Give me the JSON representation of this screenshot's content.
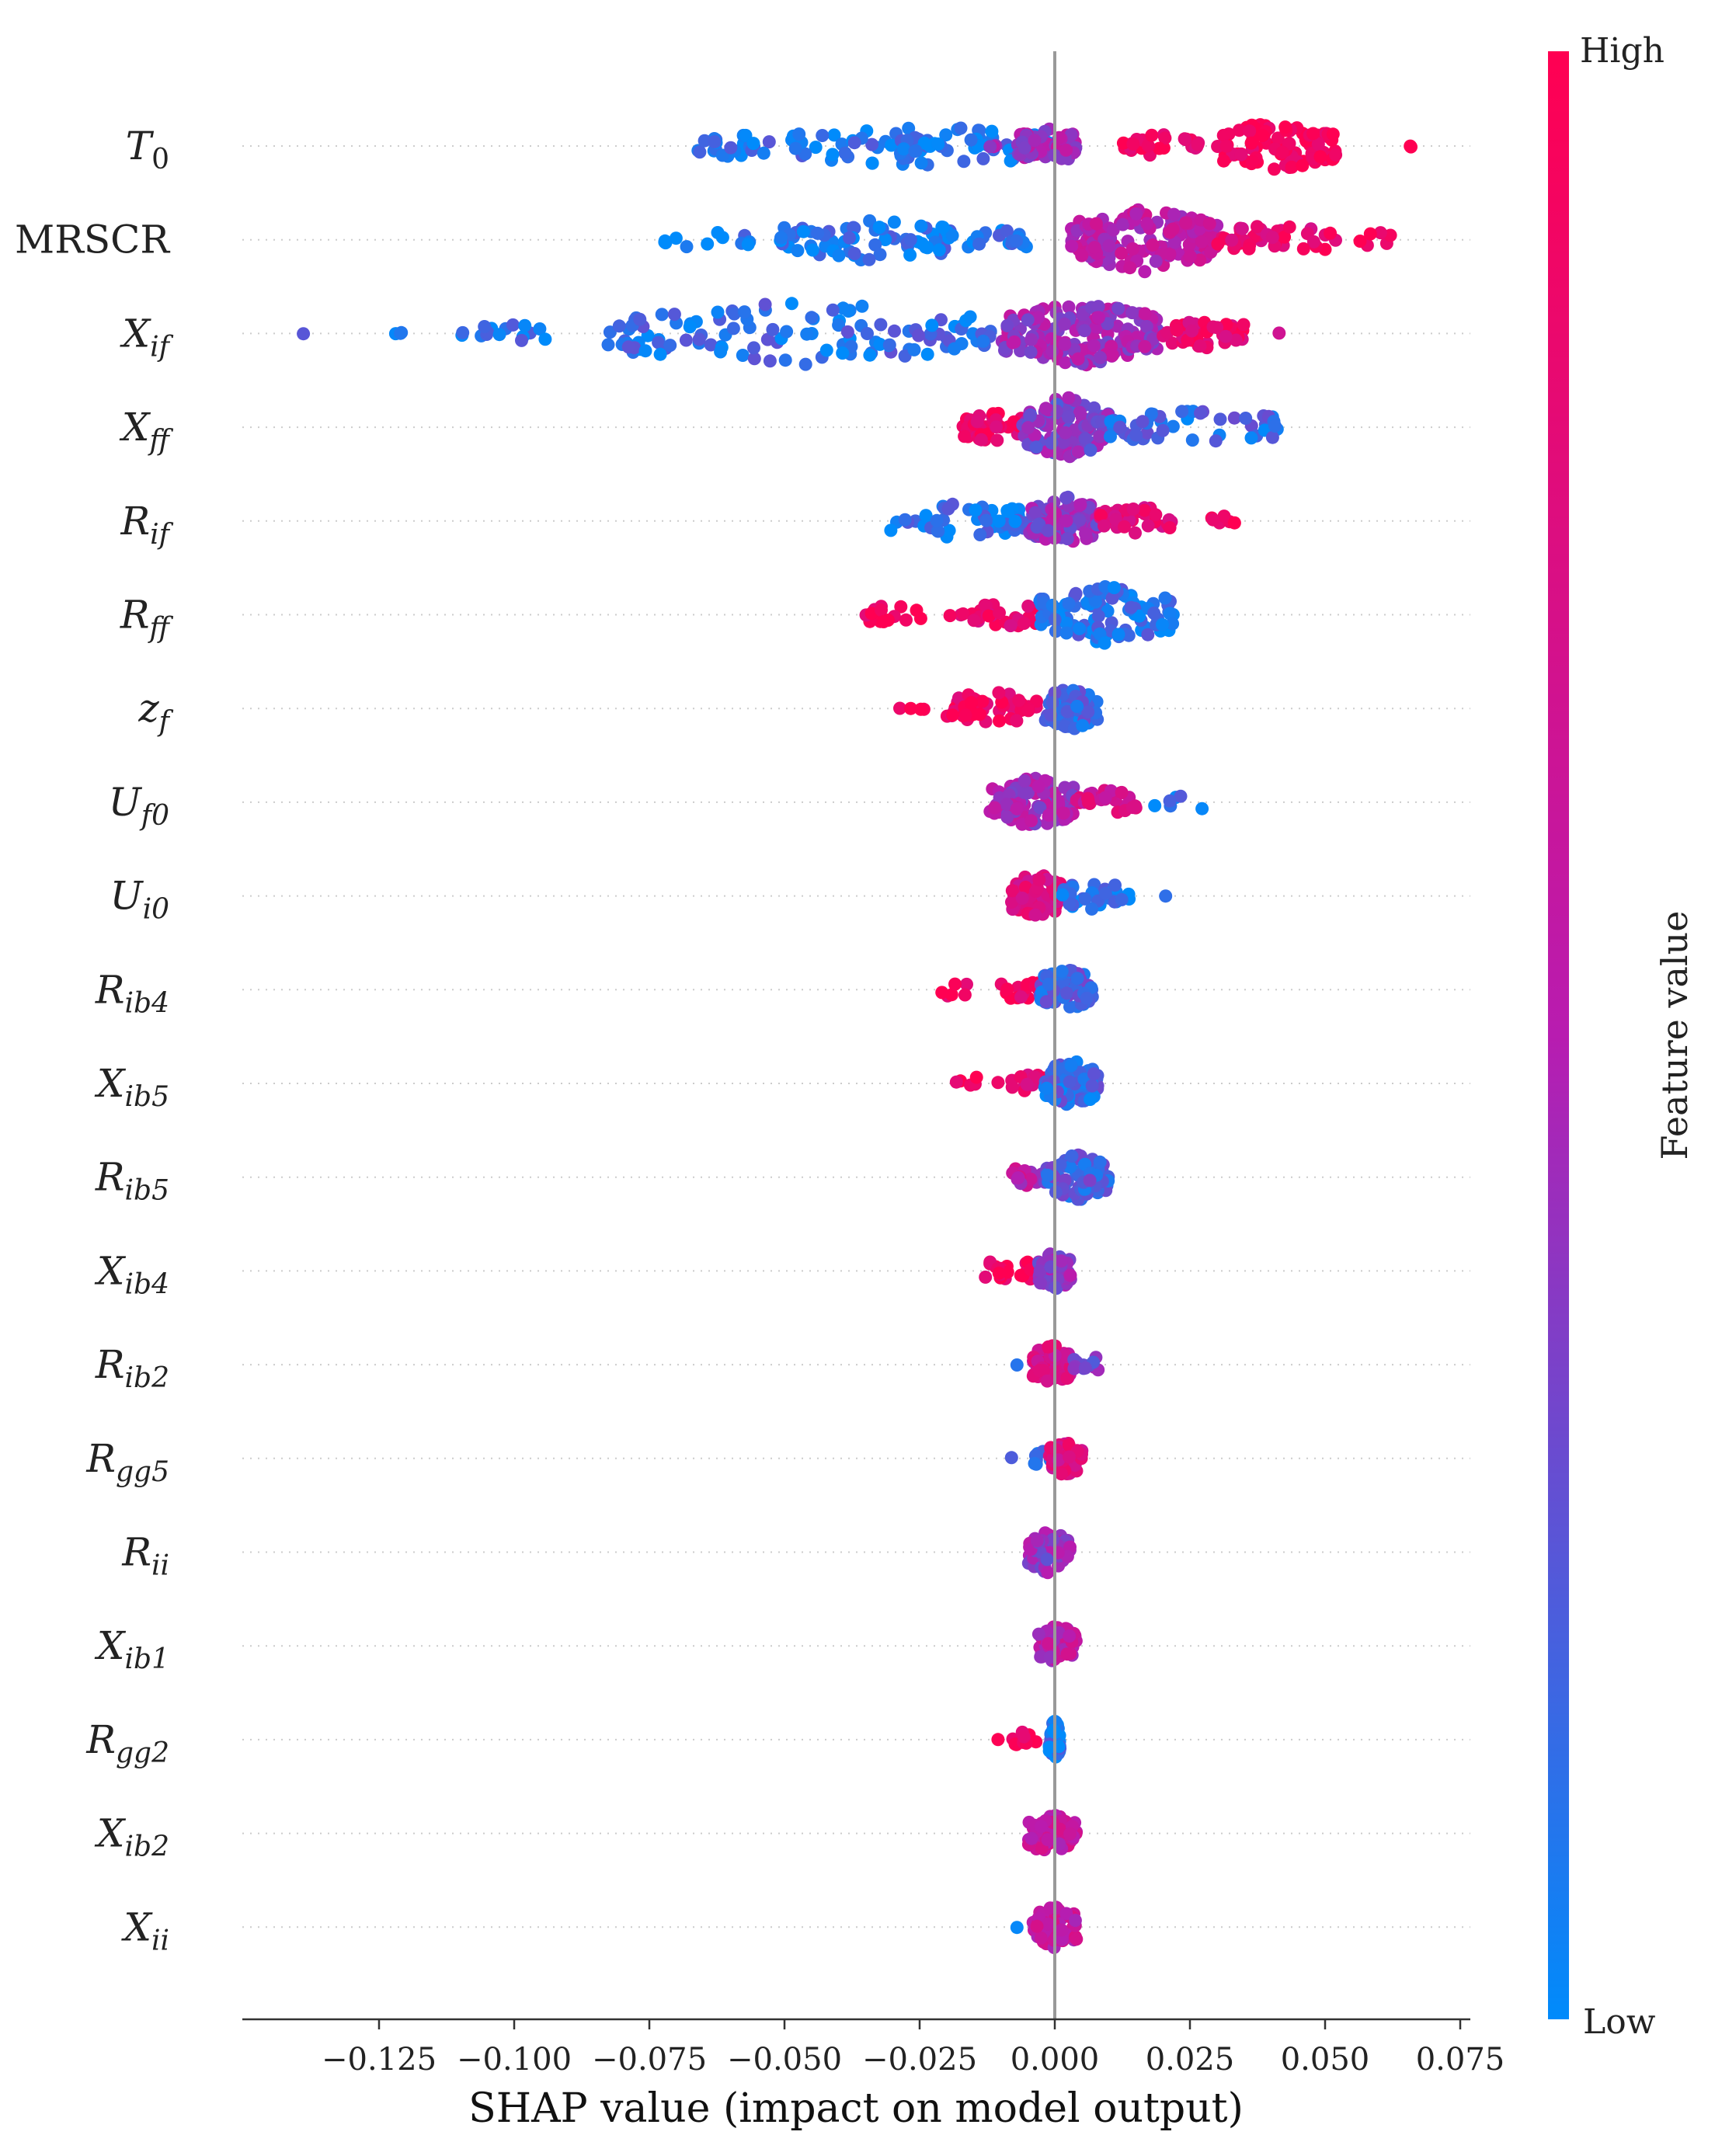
{
  "chart_data": {
    "type": "scatter",
    "subtype": "shap-beeswarm",
    "xlabel": "SHAP value (impact on model output)",
    "xlim": [
      -0.148,
      0.076
    ],
    "xticks": [
      -0.125,
      -0.1,
      -0.075,
      -0.05,
      -0.025,
      0.0,
      0.025,
      0.05,
      0.075
    ],
    "xtick_labels": [
      "−0.125",
      "−0.100",
      "−0.075",
      "−0.050",
      "−0.025",
      "0.000",
      "0.025",
      "0.050",
      "0.075"
    ],
    "colorbar": {
      "title": "Feature value",
      "high_label": "High",
      "low_label": "Low",
      "high_color": "#ff0052",
      "mid_color": "#b81cb0",
      "low_color": "#008bfb"
    },
    "features": [
      {
        "base": "T",
        "sub": "0",
        "italic_sub": false,
        "clusters": [
          [
            -0.066,
            -0.052,
            0.1,
            26
          ],
          [
            -0.049,
            0.0,
            0.08,
            70
          ],
          [
            -0.029,
            -0.021,
            0.1,
            14
          ],
          [
            -0.012,
            -0.01,
            0.5,
            3
          ],
          [
            -0.007,
            0.004,
            0.45,
            55
          ],
          [
            0.012,
            0.027,
            0.9,
            28
          ],
          [
            0.03,
            0.052,
            0.95,
            90
          ],
          [
            0.065,
            0.066,
            1.0,
            2
          ]
        ]
      },
      {
        "base": "MRSCR",
        "sub": "",
        "italic_sub": false,
        "clusters": [
          [
            -0.073,
            -0.056,
            0.05,
            12
          ],
          [
            -0.052,
            -0.018,
            0.08,
            70
          ],
          [
            -0.016,
            -0.005,
            0.1,
            20
          ],
          [
            0.003,
            0.03,
            0.55,
            150
          ],
          [
            0.03,
            0.052,
            0.85,
            40
          ],
          [
            0.056,
            0.063,
            0.95,
            6
          ]
        ]
      },
      {
        "base": "X",
        "sub": "if",
        "italic_sub": true,
        "clusters": [
          [
            -0.139,
            -0.139,
            0.1,
            1
          ],
          [
            -0.122,
            -0.12,
            0.1,
            3
          ],
          [
            -0.111,
            -0.094,
            0.1,
            16
          ],
          [
            -0.083,
            -0.01,
            0.12,
            120
          ],
          [
            -0.01,
            0.02,
            0.45,
            170
          ],
          [
            0.02,
            0.035,
            0.85,
            40
          ],
          [
            0.041,
            0.042,
            0.6,
            1
          ]
        ]
      },
      {
        "base": "X",
        "sub": "ff",
        "italic_sub": true,
        "clusters": [
          [
            -0.017,
            -0.006,
            0.9,
            40
          ],
          [
            -0.006,
            0.01,
            0.35,
            120
          ],
          [
            0.01,
            0.042,
            0.15,
            50
          ]
        ]
      },
      {
        "base": "R",
        "sub": "if",
        "italic_sub": true,
        "clusters": [
          [
            -0.031,
            -0.005,
            0.1,
            55
          ],
          [
            -0.005,
            0.008,
            0.4,
            90
          ],
          [
            0.008,
            0.022,
            0.8,
            40
          ],
          [
            0.029,
            0.034,
            0.95,
            6
          ]
        ]
      },
      {
        "base": "R",
        "sub": "ff",
        "italic_sub": true,
        "clusters": [
          [
            -0.037,
            -0.024,
            0.95,
            15
          ],
          [
            -0.02,
            -0.015,
            0.9,
            4
          ],
          [
            -0.015,
            -0.003,
            0.85,
            30
          ],
          [
            -0.003,
            0.022,
            0.1,
            110
          ]
        ]
      },
      {
        "base": "z",
        "sub": "f",
        "italic_sub": true,
        "clusters": [
          [
            -0.029,
            -0.024,
            1.0,
            4
          ],
          [
            -0.02,
            -0.003,
            0.9,
            50
          ],
          [
            -0.002,
            0.008,
            0.15,
            70
          ]
        ]
      },
      {
        "base": "U",
        "sub": "f0",
        "italic_sub": true,
        "clusters": [
          [
            -0.012,
            0.004,
            0.45,
            90
          ],
          [
            0.004,
            0.015,
            0.7,
            30
          ],
          [
            0.018,
            0.03,
            0.1,
            6
          ]
        ]
      },
      {
        "base": "U",
        "sub": "i0",
        "italic_sub": true,
        "clusters": [
          [
            -0.008,
            0.001,
            0.75,
            80
          ],
          [
            0.001,
            0.014,
            0.1,
            35
          ],
          [
            0.02,
            0.021,
            0.1,
            1
          ]
        ]
      },
      {
        "base": "R",
        "sub": "ib4",
        "italic_sub": true,
        "clusters": [
          [
            -0.021,
            -0.016,
            0.95,
            6
          ],
          [
            -0.01,
            -0.003,
            0.9,
            16
          ],
          [
            -0.003,
            0.007,
            0.2,
            70
          ]
        ]
      },
      {
        "base": "X",
        "sub": "ib5",
        "italic_sub": true,
        "clusters": [
          [
            -0.019,
            -0.014,
            0.95,
            5
          ],
          [
            -0.011,
            -0.01,
            0.9,
            1
          ],
          [
            -0.008,
            -0.002,
            0.85,
            16
          ],
          [
            -0.002,
            0.008,
            0.15,
            80
          ]
        ]
      },
      {
        "base": "R",
        "sub": "ib5",
        "italic_sub": true,
        "clusters": [
          [
            -0.008,
            -0.002,
            0.55,
            18
          ],
          [
            -0.002,
            0.01,
            0.2,
            80
          ]
        ]
      },
      {
        "base": "X",
        "sub": "ib4",
        "italic_sub": true,
        "clusters": [
          [
            -0.014,
            -0.003,
            0.95,
            20
          ],
          [
            -0.003,
            0.003,
            0.4,
            60
          ]
        ]
      },
      {
        "base": "R",
        "sub": "ib2",
        "italic_sub": true,
        "clusters": [
          [
            -0.007,
            -0.007,
            0.1,
            1
          ],
          [
            -0.004,
            0.003,
            0.7,
            70
          ],
          [
            0.003,
            0.008,
            0.35,
            12
          ]
        ]
      },
      {
        "base": "R",
        "sub": "gg5",
        "italic_sub": true,
        "clusters": [
          [
            -0.008,
            -0.008,
            0.1,
            1
          ],
          [
            -0.004,
            0.0,
            0.15,
            10
          ],
          [
            -0.001,
            0.005,
            0.75,
            60
          ]
        ]
      },
      {
        "base": "R",
        "sub": "ii",
        "italic_sub": true,
        "clusters": [
          [
            -0.005,
            0.003,
            0.4,
            70
          ]
        ]
      },
      {
        "base": "X",
        "sub": "ib1",
        "italic_sub": true,
        "clusters": [
          [
            -0.003,
            0.004,
            0.55,
            70
          ]
        ]
      },
      {
        "base": "R",
        "sub": "gg2",
        "italic_sub": true,
        "clusters": [
          [
            -0.011,
            -0.01,
            1.0,
            1
          ],
          [
            -0.008,
            -0.003,
            0.95,
            10
          ],
          [
            -0.001,
            0.001,
            0.1,
            60
          ]
        ]
      },
      {
        "base": "X",
        "sub": "ib2",
        "italic_sub": true,
        "clusters": [
          [
            -0.005,
            0.004,
            0.6,
            70
          ]
        ]
      },
      {
        "base": "X",
        "sub": "ii",
        "italic_sub": true,
        "clusters": [
          [
            -0.007,
            -0.007,
            0.15,
            1
          ],
          [
            -0.004,
            0.004,
            0.6,
            70
          ]
        ]
      }
    ]
  }
}
